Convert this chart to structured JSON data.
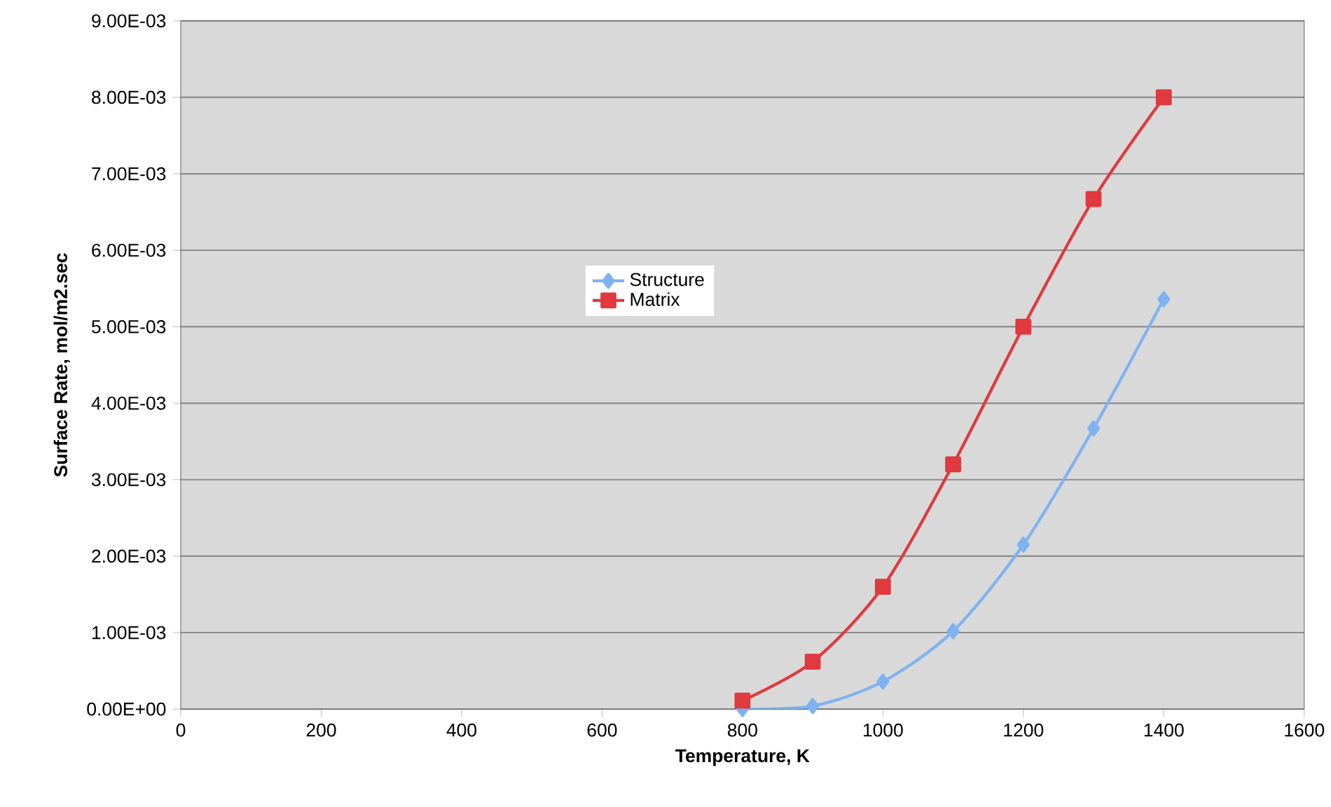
{
  "chart_data": {
    "type": "line",
    "xlabel": "Temperature, K",
    "ylabel": "Surface Rate, mol/m2.sec",
    "x": [
      800,
      900,
      1000,
      1100,
      1200,
      1300,
      1400
    ],
    "series": [
      {
        "name": "Structure",
        "color": "#7fb2f0",
        "marker": "diamond",
        "values": [
          0.0,
          4e-05,
          0.00036,
          0.00102,
          0.00215,
          0.00367,
          0.00536
        ]
      },
      {
        "name": "Matrix",
        "color": "#e0393e",
        "marker": "square",
        "values": [
          0.00011,
          0.00062,
          0.0016,
          0.0032,
          0.005,
          0.00667,
          0.008
        ]
      }
    ],
    "xlim": [
      0,
      1600
    ],
    "xticks": [
      0,
      200,
      400,
      600,
      800,
      1000,
      1200,
      1400,
      1600
    ],
    "ylim": [
      0,
      0.009
    ],
    "yticks": [
      {
        "value": 0,
        "label": "0.00E+00"
      },
      {
        "value": 0.001,
        "label": "1.00E-03"
      },
      {
        "value": 0.002,
        "label": "2.00E-03"
      },
      {
        "value": 0.003,
        "label": "3.00E-03"
      },
      {
        "value": 0.004,
        "label": "4.00E-03"
      },
      {
        "value": 0.005,
        "label": "5.00E-03"
      },
      {
        "value": 0.006,
        "label": "6.00E-03"
      },
      {
        "value": 0.007,
        "label": "7.00E-03"
      },
      {
        "value": 0.008,
        "label": "8.00E-03"
      },
      {
        "value": 0.009,
        "label": "9.00E-03"
      }
    ],
    "grid": "y",
    "legend": "center",
    "line_style": "solid"
  }
}
